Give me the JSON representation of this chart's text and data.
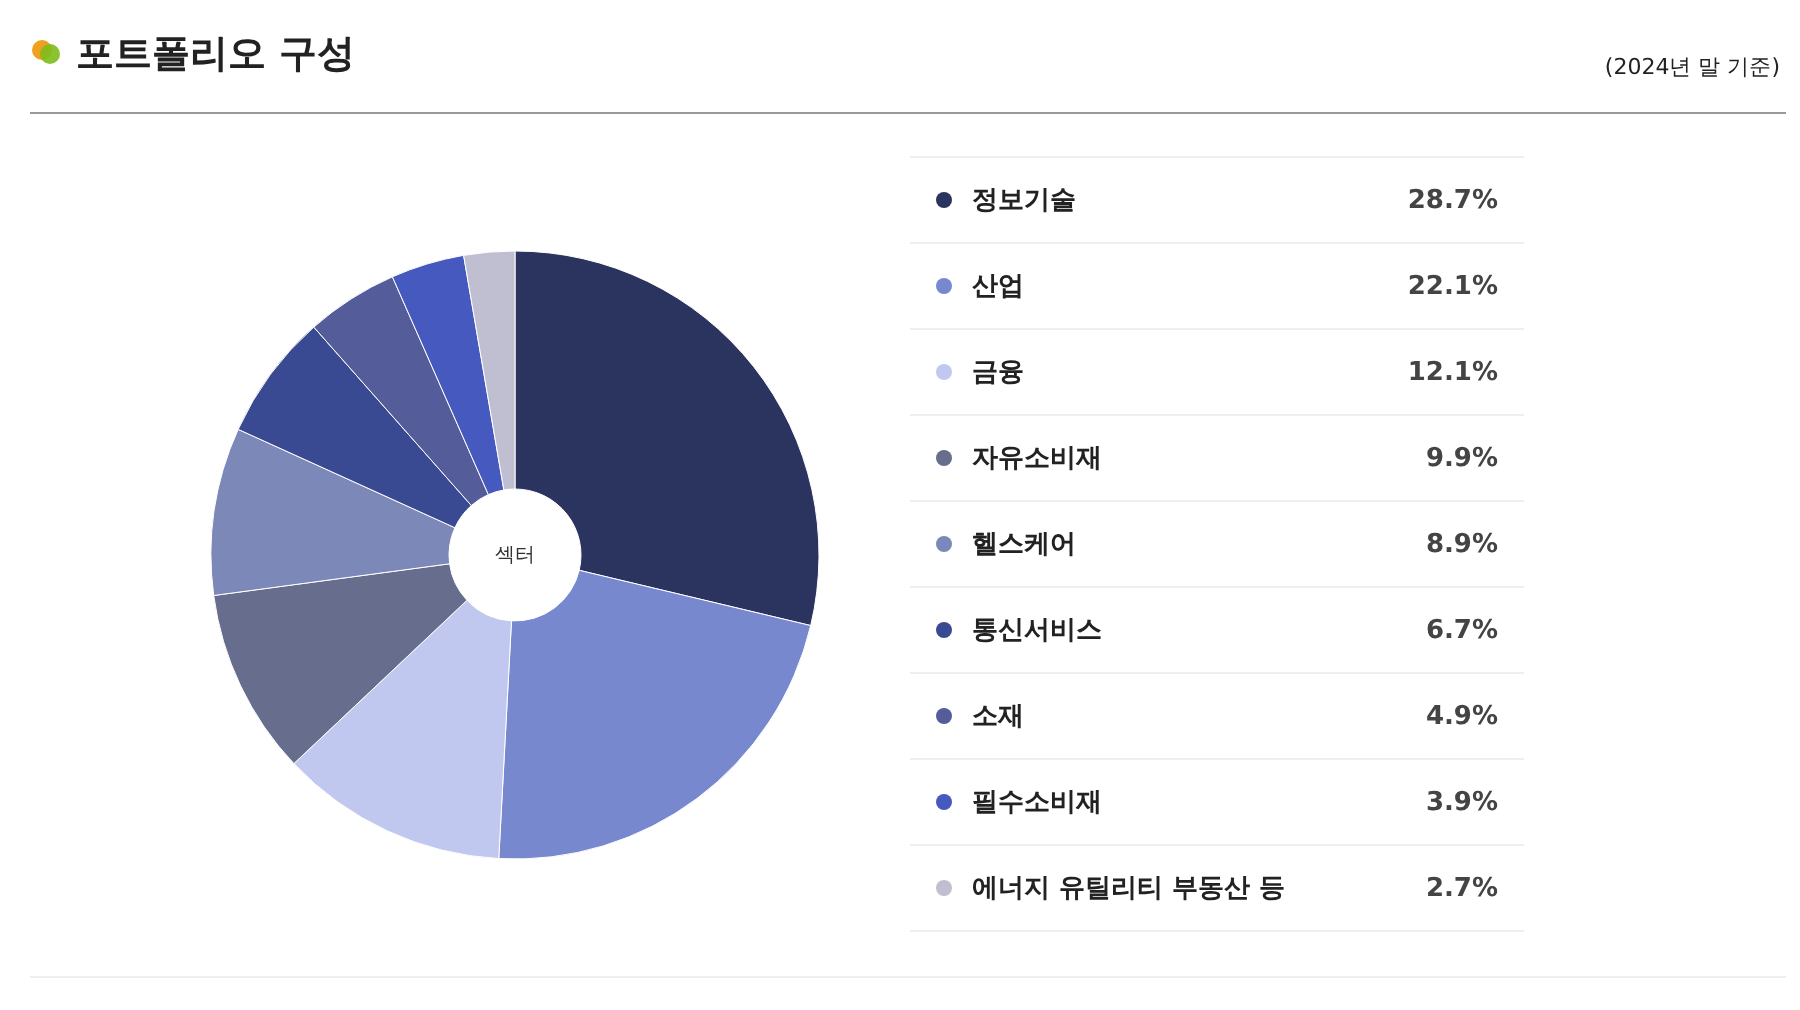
{
  "chart_data": {
    "type": "donut",
    "title": "포트폴리오 구성",
    "subtitle": "(2024년 말 기준)",
    "annotations": [
      "섹터"
    ],
    "categories": [
      "정보기술",
      "산업",
      "금융",
      "자유소비재",
      "헬스케어",
      "통신서비스",
      "소재",
      "필수소비재",
      "에너지 유틸리티 부동산 등"
    ],
    "values": [
      28.7,
      22.1,
      12.1,
      9.9,
      8.9,
      6.7,
      4.9,
      3.9,
      2.7
    ],
    "colors": [
      "#2b335f",
      "#7788cf",
      "#c0c8ef",
      "#676d8c",
      "#7b88b8",
      "#3a4a92",
      "#545d99",
      "#4559bf",
      "#bfbfd1"
    ],
    "value_labels": [
      "28.7%",
      "22.1%",
      "12.1%",
      "9.9%",
      "8.9%",
      "6.7%",
      "4.9%",
      "3.9%",
      "2.7%"
    ],
    "legend": "right"
  }
}
